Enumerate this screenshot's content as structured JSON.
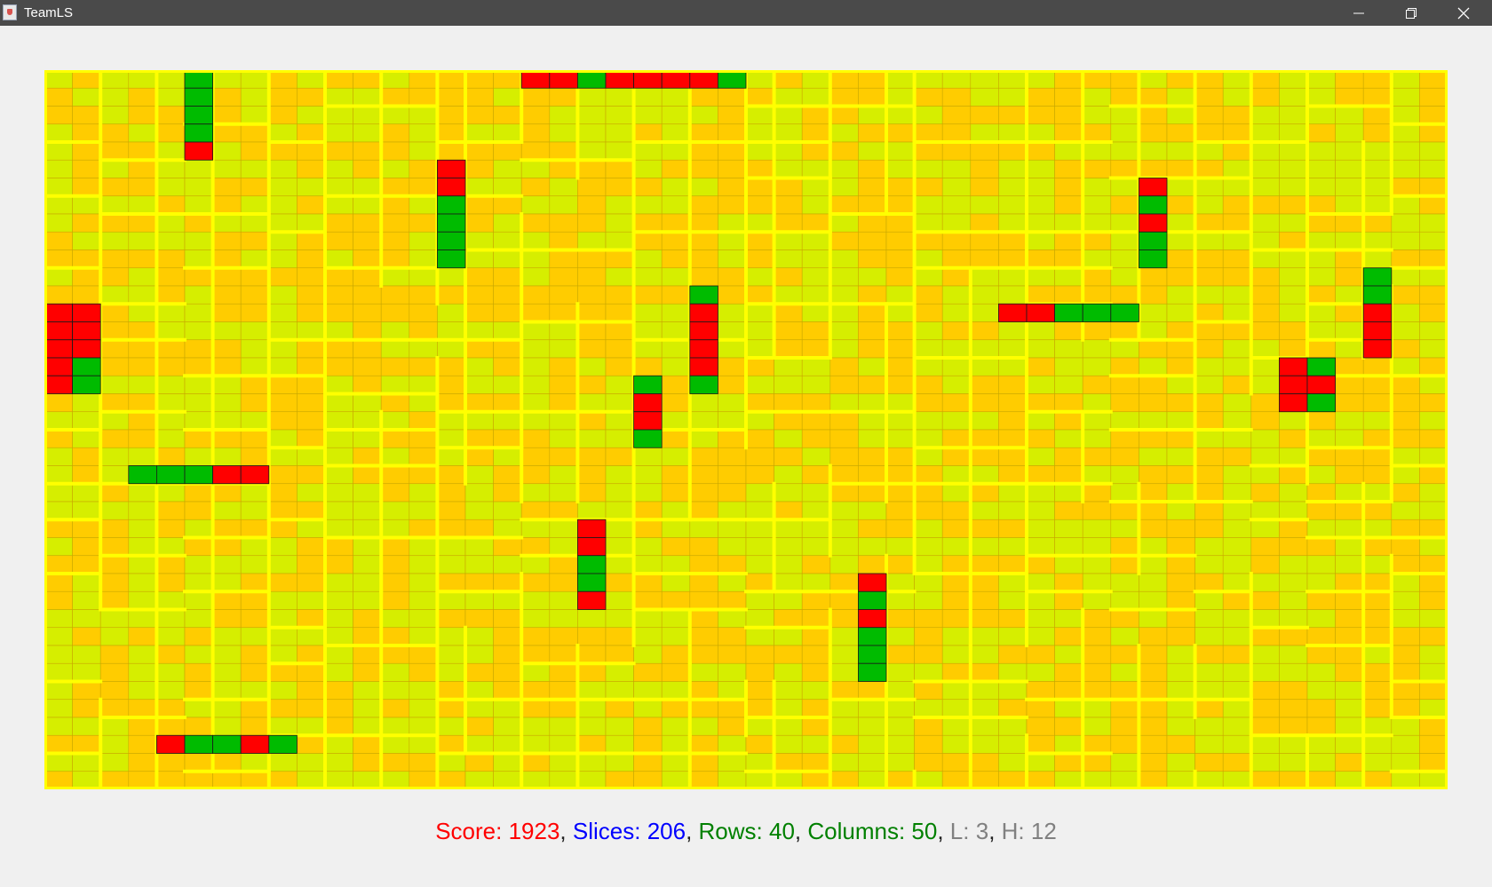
{
  "window": {
    "title": "TeamLS",
    "minimize_icon": "minimize-icon",
    "maximize_icon": "restore-icon",
    "close_icon": "close-icon"
  },
  "grid": {
    "rows": 40,
    "columns": 50,
    "colors": {
      "frame": "#ffff00",
      "cell_a": "#ffcc00",
      "cell_b": "#d6ee00",
      "unused_red": "#ff0000",
      "unused_green": "#00bb00",
      "cell_border": "#c9a800",
      "unused_border": "#1a1a1a"
    }
  },
  "status": {
    "score_label": "Score: ",
    "score_value": "1923",
    "slices_label": "Slices: ",
    "slices_value": "206",
    "rows_label": "Rows: ",
    "rows_value": "40",
    "columns_label": "Columns: ",
    "columns_value": "50",
    "l_label": "L: ",
    "l_value": "3",
    "h_label": "H: ",
    "h_value": "12",
    "separator": ", ",
    "colors": {
      "score": "#ff0000",
      "slices": "#0000ff",
      "rows": "#008000",
      "columns": "#008000",
      "lh": "#808080"
    }
  }
}
